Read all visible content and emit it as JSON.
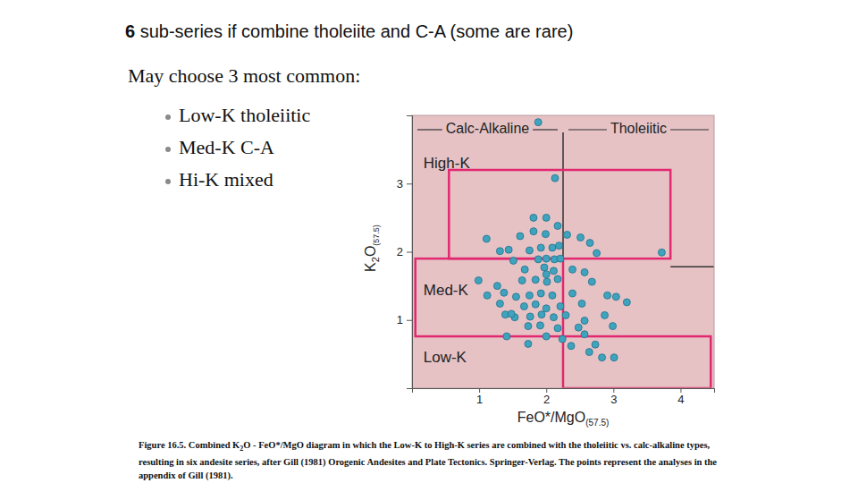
{
  "slide": {
    "title_number": "6",
    "title": "sub-series if combine tholeiite and C-A (some are rare)",
    "intro": "May choose 3 most common:",
    "bullets": [
      "Low-K tholeiitic",
      "Med-K C-A",
      "Hi-K mixed"
    ],
    "caption": [
      "Figure 16.5. Combined K",
      "2",
      "O - FeO*/MgO diagram in which the Low-K to High-K series are combined with the tholeiitic vs. calc-alkaline types, resulting in six andesite series, after Gill (1981) Orogenic Andesites and Plate Tectonics. Springer-Verlag. The points represent the analyses in the appendix of Gill (1981)."
    ]
  },
  "chart_data": {
    "type": "scatter",
    "xlabel": [
      "FeO*/MgO",
      "(57.5)"
    ],
    "ylabel": [
      "K",
      "2",
      "O",
      "(57.5)"
    ],
    "xlim": [
      0,
      4.5
    ],
    "ylim": [
      0,
      4
    ],
    "xticks": [
      1,
      2,
      3,
      4
    ],
    "yticks": [
      1,
      2,
      3
    ],
    "color": "#3fa3bd",
    "marker": "circle",
    "header_labels": [
      "Calc-Alkaline",
      "Tholeiitic"
    ],
    "boundaries": [
      {
        "x": [
          2.25,
          2.25
        ],
        "y": [
          0,
          3.75
        ]
      },
      {
        "x": [
          3.85,
          4.5
        ],
        "y": [
          1.78,
          1.78
        ]
      }
    ],
    "regions": [
      {
        "name": "High-K",
        "x": [
          0.55,
          3.85
        ],
        "y": [
          1.9,
          3.2
        ],
        "label_at": [
          0.17,
          3.29
        ]
      },
      {
        "name": "Med-K",
        "x": [
          0.05,
          2.25
        ],
        "y": [
          0.76,
          1.9
        ],
        "label_at": [
          0.17,
          1.42
        ]
      },
      {
        "name": "Low-K",
        "x": [
          2.25,
          4.45
        ],
        "y": [
          0,
          0.76
        ],
        "label_at": [
          0.17,
          0.44
        ]
      }
    ],
    "x": [
      1.88,
      2.13,
      1.81,
      2.0,
      1.81,
      2.17,
      1.11,
      1.61,
      1.99,
      2.31,
      2.51,
      2.65,
      3.72,
      1.31,
      1.44,
      1.75,
      1.92,
      2.09,
      2.19,
      1.51,
      1.88,
      2.0,
      2.12,
      2.21,
      2.75,
      1.68,
      1.97,
      2.11,
      2.39,
      2.57,
      0.99,
      1.27,
      1.64,
      1.84,
      2.01,
      2.17,
      2.68,
      1.12,
      1.37,
      1.55,
      1.75,
      1.92,
      2.09,
      2.39,
      2.91,
      3.04,
      1.31,
      1.67,
      1.84,
      2.0,
      2.21,
      2.53,
      3.2,
      1.39,
      1.53,
      1.76,
      1.93,
      2.11,
      2.29,
      2.57,
      2.87,
      1.73,
      1.91,
      2.17,
      2.48,
      2.99,
      1.41,
      2.0,
      2.24,
      2.57,
      1.73,
      2.37,
      2.73,
      2.64,
      2.83,
      3.01,
      2.0,
      1.48
    ],
    "y": [
      3.9,
      3.08,
      2.5,
      2.5,
      2.3,
      2.38,
      2.19,
      2.23,
      2.26,
      2.25,
      2.21,
      2.13,
      1.99,
      2.01,
      2.03,
      2.02,
      2.06,
      2.06,
      2.09,
      1.87,
      1.89,
      1.9,
      1.89,
      1.9,
      1.98,
      1.74,
      1.77,
      1.72,
      1.74,
      1.7,
      1.58,
      1.5,
      1.58,
      1.59,
      1.56,
      1.6,
      1.56,
      1.36,
      1.4,
      1.34,
      1.36,
      1.39,
      1.36,
      1.39,
      1.36,
      1.34,
      1.24,
      1.2,
      1.23,
      1.17,
      1.2,
      1.24,
      1.26,
      1.08,
      1.04,
      1.05,
      1.08,
      1.04,
      1.07,
      0.99,
      1.07,
      0.91,
      0.92,
      0.88,
      0.89,
      0.91,
      0.76,
      0.76,
      0.72,
      0.79,
      0.65,
      0.62,
      0.64,
      0.53,
      0.45,
      0.45,
      1.67,
      1.09
    ]
  }
}
